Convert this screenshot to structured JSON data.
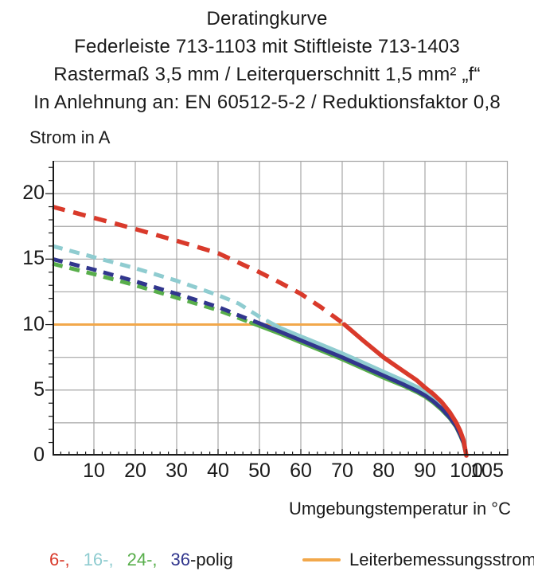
{
  "title": {
    "line1": "Deratingkurve",
    "line2": "Federleiste 713-1103 mit Stiftleiste 713-1403",
    "line3": "Rastermaß 3,5 mm / Leiterquerschnitt 1,5 mm² „f“",
    "line4": "In Anlehnung an: EN 60512-5-2 / Reduktionsfaktor 0,8"
  },
  "axes": {
    "y_title": "Strom in A",
    "x_title": "Umgebungstemperatur in °C"
  },
  "legend": {
    "items": [
      {
        "label": "6-,",
        "color": "#d93a2b"
      },
      {
        "label": "16-,",
        "color": "#8fccd0"
      },
      {
        "label": "24-,",
        "color": "#58ae4b"
      },
      {
        "label": "36",
        "color": "#31368d"
      }
    ],
    "suffix": "-polig",
    "suffix_color": "#1a1a1a",
    "rated": {
      "label": "Leiterbemessungsstrom",
      "color": "#f2a84b"
    }
  },
  "chart_data": {
    "type": "line",
    "title": "Deratingkurve",
    "xlabel": "Umgebungstemperatur in °C",
    "ylabel": "Strom in A",
    "xlim": [
      0,
      110
    ],
    "ylim": [
      0,
      22.5
    ],
    "grid": true,
    "grid_color": "#a6a6a6",
    "axis_color": "#1a1a1a",
    "x_grid_step": 10,
    "y_grid_step": 2.5,
    "x_minor_tick_step": 2,
    "y_minor_tick_step": 1,
    "x_tick_labels": [
      10,
      20,
      30,
      40,
      50,
      60,
      70,
      80,
      90,
      100,
      105
    ],
    "y_tick_labels": [
      0,
      5,
      10,
      15,
      20
    ],
    "legend_position": "bottom",
    "line_style_note": "curves are dashed while above the rated conductor current (10 A), solid below it",
    "rated_current_line": {
      "name": "Leiterbemessungsstrom",
      "y": 10,
      "x_start": 0,
      "x_end": 70.5,
      "color": "#f2a84b",
      "width": 3
    },
    "series": [
      {
        "name": "6-polig",
        "color": "#d93a2b",
        "dash_until": 70.5,
        "dash_pattern": "16 11",
        "stroke_width": 5.5,
        "z": 4,
        "points": [
          [
            0,
            19
          ],
          [
            10,
            18.15
          ],
          [
            20,
            17.3
          ],
          [
            30,
            16.4
          ],
          [
            40,
            15.45
          ],
          [
            50,
            14.0
          ],
          [
            55,
            13.2
          ],
          [
            60,
            12.35
          ],
          [
            65,
            11.3
          ],
          [
            70,
            10.15
          ],
          [
            75,
            8.8
          ],
          [
            80,
            7.5
          ],
          [
            85,
            6.4
          ],
          [
            88,
            5.75
          ],
          [
            90,
            5.2
          ],
          [
            92,
            4.7
          ],
          [
            94,
            4.1
          ],
          [
            96,
            3.3
          ],
          [
            97.5,
            2.55
          ],
          [
            98.5,
            1.9
          ],
          [
            99.3,
            1.2
          ],
          [
            100,
            0
          ]
        ]
      },
      {
        "name": "16-polig",
        "color": "#8fccd0",
        "dash_until": 52,
        "dash_pattern": "13 9",
        "stroke_width": 5,
        "z": 2,
        "points": [
          [
            0,
            16
          ],
          [
            10,
            15.15
          ],
          [
            20,
            14.3
          ],
          [
            30,
            13.35
          ],
          [
            40,
            12.25
          ],
          [
            45,
            11.6
          ],
          [
            50,
            10.6
          ],
          [
            55,
            9.75
          ],
          [
            60,
            9.1
          ],
          [
            65,
            8.45
          ],
          [
            70,
            7.8
          ],
          [
            75,
            7.1
          ],
          [
            80,
            6.4
          ],
          [
            85,
            5.7
          ],
          [
            88,
            5.25
          ],
          [
            90,
            4.9
          ],
          [
            92,
            4.45
          ],
          [
            94,
            3.9
          ],
          [
            96,
            3.15
          ],
          [
            97.5,
            2.45
          ],
          [
            98.5,
            1.8
          ],
          [
            99.3,
            1.15
          ],
          [
            100,
            0
          ]
        ]
      },
      {
        "name": "24-polig",
        "color": "#58ae4b",
        "dash_until": 48,
        "dash_pattern": "13 9",
        "stroke_width": 5,
        "z": 1,
        "points": [
          [
            0,
            14.65
          ],
          [
            10,
            13.85
          ],
          [
            20,
            13.0
          ],
          [
            30,
            12.05
          ],
          [
            40,
            11.1
          ],
          [
            45,
            10.5
          ],
          [
            50,
            9.9
          ],
          [
            55,
            9.3
          ],
          [
            60,
            8.65
          ],
          [
            65,
            8.0
          ],
          [
            70,
            7.35
          ],
          [
            75,
            6.65
          ],
          [
            80,
            5.95
          ],
          [
            85,
            5.3
          ],
          [
            88,
            4.85
          ],
          [
            90,
            4.5
          ],
          [
            92,
            4.05
          ],
          [
            94,
            3.5
          ],
          [
            96,
            2.85
          ],
          [
            97.5,
            2.2
          ],
          [
            98.5,
            1.55
          ],
          [
            99.3,
            0.95
          ],
          [
            100,
            0
          ]
        ]
      },
      {
        "name": "36-polig",
        "color": "#31368d",
        "dash_until": 50.5,
        "dash_pattern": "13 9",
        "stroke_width": 5,
        "z": 3,
        "points": [
          [
            0,
            15
          ],
          [
            10,
            14.2
          ],
          [
            20,
            13.3
          ],
          [
            30,
            12.35
          ],
          [
            40,
            11.35
          ],
          [
            45,
            10.7
          ],
          [
            50,
            10.1
          ],
          [
            55,
            9.45
          ],
          [
            60,
            8.8
          ],
          [
            65,
            8.15
          ],
          [
            70,
            7.5
          ],
          [
            75,
            6.8
          ],
          [
            80,
            6.1
          ],
          [
            85,
            5.4
          ],
          [
            88,
            4.95
          ],
          [
            90,
            4.6
          ],
          [
            92,
            4.15
          ],
          [
            94,
            3.6
          ],
          [
            96,
            2.9
          ],
          [
            97.5,
            2.25
          ],
          [
            98.5,
            1.6
          ],
          [
            99.3,
            1.0
          ],
          [
            100,
            0
          ]
        ]
      }
    ]
  }
}
